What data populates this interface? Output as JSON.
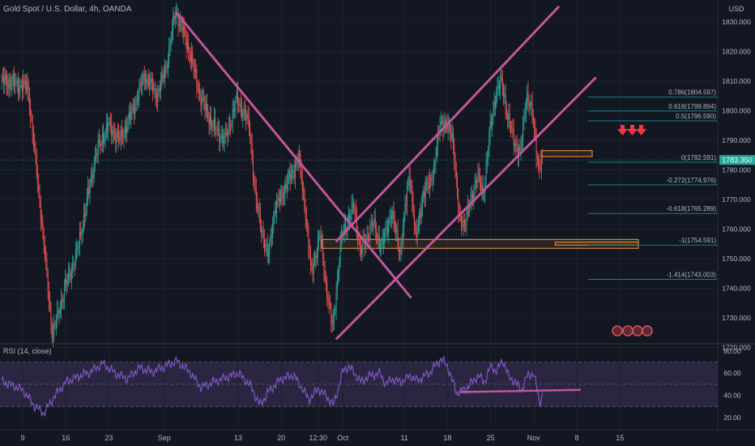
{
  "header": {
    "symbol_title": "Gold Spot / U.S. Dollar, 4h, OANDA",
    "currency": "USD"
  },
  "colors": {
    "background": "#131722",
    "grid": "#1e222d",
    "up": "#26a69a",
    "down": "#ef5350",
    "trendline": "#c2569b",
    "fib": "#138484",
    "rsi": "#7e57c2",
    "rsi_band": "#2a2540",
    "text": "#b2b5be",
    "zone": "#f39c3f",
    "arrows": "#f23645"
  },
  "chart_data": [
    {
      "type": "candlestick",
      "title": "Gold Spot / U.S. Dollar, 4h, OANDA",
      "xlabel": "",
      "ylabel": "",
      "x_tick_labels": [
        "9",
        "16",
        "23",
        "Sep",
        "13",
        "20",
        "12:30",
        "Oct",
        "11",
        "18",
        "25",
        "Nov",
        "8",
        "15"
      ],
      "x_tick_day": [
        0,
        7,
        14,
        23,
        35,
        42,
        48,
        52,
        62,
        69,
        76,
        83,
        90,
        97
      ],
      "y_ticks": [
        "1830.000",
        "1820.000",
        "1810.000",
        "1800.000",
        "1790.000",
        "1780.000",
        "1770.000",
        "1760.000",
        "1750.000",
        "1740.000",
        "1730.000",
        "1720.000"
      ],
      "ylim": [
        1713,
        1835
      ],
      "grid": true,
      "last_price": "1783.350",
      "swing_points": [
        {
          "day": -3,
          "price": 1810
        },
        {
          "day": 1,
          "price": 1808
        },
        {
          "day": 3,
          "price": 1768
        },
        {
          "day": 5,
          "price": 1724
        },
        {
          "day": 7,
          "price": 1740
        },
        {
          "day": 9,
          "price": 1752
        },
        {
          "day": 12,
          "price": 1785
        },
        {
          "day": 14,
          "price": 1795
        },
        {
          "day": 16,
          "price": 1790
        },
        {
          "day": 18,
          "price": 1800
        },
        {
          "day": 20,
          "price": 1812
        },
        {
          "day": 22,
          "price": 1805
        },
        {
          "day": 23.5,
          "price": 1815
        },
        {
          "day": 25,
          "price": 1834
        },
        {
          "day": 27,
          "price": 1822
        },
        {
          "day": 29,
          "price": 1805
        },
        {
          "day": 31,
          "price": 1795
        },
        {
          "day": 33,
          "price": 1790
        },
        {
          "day": 35,
          "price": 1804
        },
        {
          "day": 37,
          "price": 1795
        },
        {
          "day": 38,
          "price": 1770
        },
        {
          "day": 40,
          "price": 1750
        },
        {
          "day": 41,
          "price": 1766
        },
        {
          "day": 43,
          "price": 1775
        },
        {
          "day": 45,
          "price": 1784
        },
        {
          "day": 46,
          "price": 1768
        },
        {
          "day": 47,
          "price": 1745
        },
        {
          "day": 48.5,
          "price": 1758
        },
        {
          "day": 49.5,
          "price": 1740
        },
        {
          "day": 50.5,
          "price": 1726
        },
        {
          "day": 51.5,
          "price": 1748
        },
        {
          "day": 52,
          "price": 1758
        },
        {
          "day": 54,
          "price": 1768
        },
        {
          "day": 55,
          "price": 1752
        },
        {
          "day": 57,
          "price": 1762
        },
        {
          "day": 58.5,
          "price": 1754
        },
        {
          "day": 60,
          "price": 1766
        },
        {
          "day": 61.5,
          "price": 1752
        },
        {
          "day": 63,
          "price": 1780
        },
        {
          "day": 64,
          "price": 1756
        },
        {
          "day": 65,
          "price": 1770
        },
        {
          "day": 67,
          "price": 1780
        },
        {
          "day": 68,
          "price": 1797
        },
        {
          "day": 70,
          "price": 1792
        },
        {
          "day": 71,
          "price": 1764
        },
        {
          "day": 72,
          "price": 1762
        },
        {
          "day": 74,
          "price": 1778
        },
        {
          "day": 75,
          "price": 1772
        },
        {
          "day": 76,
          "price": 1792
        },
        {
          "day": 77,
          "price": 1806
        },
        {
          "day": 78,
          "price": 1810
        },
        {
          "day": 79,
          "price": 1797
        },
        {
          "day": 80,
          "price": 1790
        },
        {
          "day": 81,
          "price": 1785
        },
        {
          "day": 82,
          "price": 1806
        },
        {
          "day": 83,
          "price": 1798
        },
        {
          "day": 84,
          "price": 1780
        },
        {
          "day": 84.5,
          "price": 1783
        }
      ],
      "trendlines": [
        {
          "name": "descending-line",
          "from": {
            "day": 25,
            "price": 1833
          },
          "to": {
            "day": 63,
            "price": 1737
          }
        },
        {
          "name": "channel-lower",
          "from": {
            "day": 51,
            "price": 1723
          },
          "to": {
            "day": 93,
            "price": 1811
          }
        },
        {
          "name": "channel-upper",
          "from": {
            "day": 51,
            "price": 1756
          },
          "to": {
            "day": 87,
            "price": 1835
          }
        }
      ],
      "fibonacci": [
        {
          "label": "0.786(1804.597)",
          "price": 1804.597
        },
        {
          "label": "0.618(1799.894)",
          "price": 1799.894
        },
        {
          "label": "0.5(1796.590)",
          "price": 1796.59
        },
        {
          "label": "0(1782.591)",
          "price": 1782.591
        },
        {
          "label": "-0.272(1774.976)",
          "price": 1774.976
        },
        {
          "label": "-0.618(1765.289)",
          "price": 1765.289
        },
        {
          "label": "-1(1754.591)",
          "price": 1754.591
        },
        {
          "label": "-1.414(1743.003)",
          "price": 1743.003
        }
      ],
      "zones": [
        {
          "name": "resistance-box",
          "day_from": 84.2,
          "day_to": 92.5,
          "price_top": 1786.5,
          "price_bottom": 1784.5
        },
        {
          "name": "support-zone",
          "day_from": 48.5,
          "day_to": 100,
          "price_top": 1756.5,
          "price_bottom": 1753.5
        },
        {
          "name": "support-zone-inner",
          "day_from": 86.5,
          "day_to": 100,
          "price_top": 1755.6,
          "price_bottom": 1754.6
        }
      ]
    },
    {
      "type": "line",
      "title": "RSI (14, close)",
      "xlabel": "",
      "ylabel": "",
      "y_ticks": [
        "80.00",
        "60.00",
        "40.00",
        "20.00"
      ],
      "ylim": [
        16,
        85
      ],
      "band": [
        30,
        70
      ],
      "midline": 50,
      "grid": true,
      "swing_points": [
        {
          "day": -3,
          "value": 52
        },
        {
          "day": 0,
          "value": 45
        },
        {
          "day": 2,
          "value": 30
        },
        {
          "day": 3.5,
          "value": 24
        },
        {
          "day": 5,
          "value": 38
        },
        {
          "day": 7,
          "value": 52
        },
        {
          "day": 9,
          "value": 57
        },
        {
          "day": 11,
          "value": 61
        },
        {
          "day": 13,
          "value": 69
        },
        {
          "day": 15,
          "value": 60
        },
        {
          "day": 17,
          "value": 55
        },
        {
          "day": 19,
          "value": 65
        },
        {
          "day": 21,
          "value": 61
        },
        {
          "day": 23,
          "value": 66
        },
        {
          "day": 25,
          "value": 71
        },
        {
          "day": 27,
          "value": 62
        },
        {
          "day": 29,
          "value": 47
        },
        {
          "day": 31,
          "value": 52
        },
        {
          "day": 33,
          "value": 56
        },
        {
          "day": 35,
          "value": 60
        },
        {
          "day": 37,
          "value": 49
        },
        {
          "day": 38.5,
          "value": 31
        },
        {
          "day": 40,
          "value": 44
        },
        {
          "day": 42,
          "value": 55
        },
        {
          "day": 44,
          "value": 58
        },
        {
          "day": 45,
          "value": 50
        },
        {
          "day": 46.5,
          "value": 36
        },
        {
          "day": 48,
          "value": 46
        },
        {
          "day": 49.5,
          "value": 38
        },
        {
          "day": 50.5,
          "value": 31
        },
        {
          "day": 52,
          "value": 62
        },
        {
          "day": 53,
          "value": 66
        },
        {
          "day": 55,
          "value": 52
        },
        {
          "day": 56,
          "value": 57
        },
        {
          "day": 58,
          "value": 60
        },
        {
          "day": 59,
          "value": 50
        },
        {
          "day": 60,
          "value": 55
        },
        {
          "day": 61.5,
          "value": 52
        },
        {
          "day": 63,
          "value": 58
        },
        {
          "day": 64,
          "value": 53
        },
        {
          "day": 66,
          "value": 60
        },
        {
          "day": 68,
          "value": 73
        },
        {
          "day": 69,
          "value": 66
        },
        {
          "day": 70.5,
          "value": 42
        },
        {
          "day": 72,
          "value": 46
        },
        {
          "day": 74,
          "value": 58
        },
        {
          "day": 75,
          "value": 52
        },
        {
          "day": 76,
          "value": 66
        },
        {
          "day": 77,
          "value": 62
        },
        {
          "day": 78,
          "value": 72
        },
        {
          "day": 79,
          "value": 56
        },
        {
          "day": 80,
          "value": 52
        },
        {
          "day": 81,
          "value": 44
        },
        {
          "day": 82,
          "value": 58
        },
        {
          "day": 83,
          "value": 60
        },
        {
          "day": 84,
          "value": 33
        },
        {
          "day": 84.5,
          "value": 42
        }
      ],
      "divergence_line": {
        "from": {
          "day": 71,
          "value": 43
        },
        "to": {
          "day": 90.5,
          "value": 45
        }
      }
    }
  ]
}
